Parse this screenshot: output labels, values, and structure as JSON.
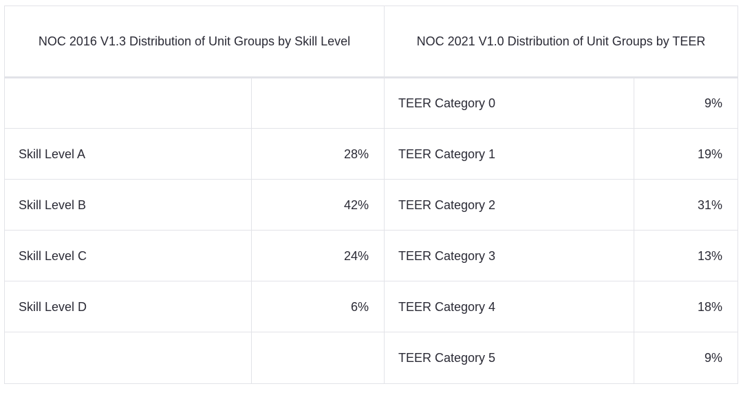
{
  "table": {
    "headers": [
      "NOC 2016 V1.3 Distribution of Unit Groups by Skill Level",
      "NOC 2021 V1.0 Distribution of Unit Groups by TEER"
    ],
    "rows": [
      {
        "skill_label": "",
        "skill_pct": "",
        "teer_label": "TEER Category 0",
        "teer_pct": "9%"
      },
      {
        "skill_label": "Skill Level A",
        "skill_pct": "28%",
        "teer_label": "TEER Category 1",
        "teer_pct": "19%"
      },
      {
        "skill_label": "Skill Level B",
        "skill_pct": "42%",
        "teer_label": "TEER Category 2",
        "teer_pct": "31%"
      },
      {
        "skill_label": "Skill Level C",
        "skill_pct": "24%",
        "teer_label": "TEER Category 3",
        "teer_pct": "13%"
      },
      {
        "skill_label": "Skill Level D",
        "skill_pct": "6%",
        "teer_label": "TEER Category 4",
        "teer_pct": "18%"
      },
      {
        "skill_label": "",
        "skill_pct": "",
        "teer_label": "TEER Category 5",
        "teer_pct": "9%"
      }
    ]
  }
}
